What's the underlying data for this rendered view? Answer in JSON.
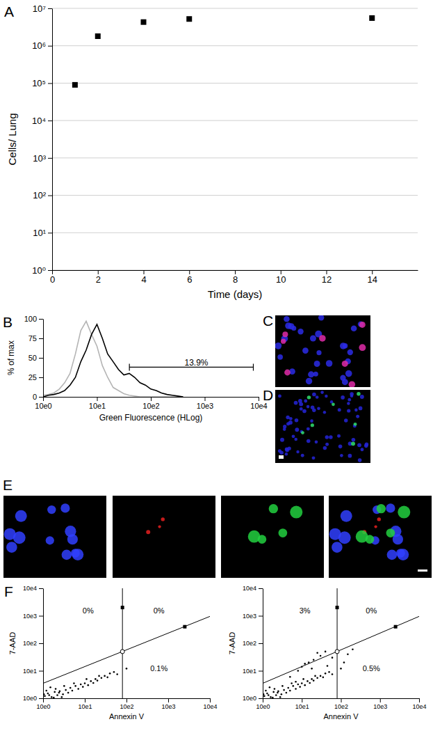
{
  "chart_data": [
    {
      "type": "scatter",
      "title": "A",
      "x": [
        1,
        2,
        4,
        6,
        14
      ],
      "values": [
        90000,
        1800000,
        4300000,
        5200000,
        5500000
      ],
      "xlim": [
        0,
        16
      ],
      "ylim": [
        1,
        10000000
      ],
      "xticks": [
        0,
        2,
        4,
        6,
        8,
        10,
        12,
        14
      ],
      "yticks": [
        {
          "value": 1,
          "label": "10⁰"
        },
        {
          "value": 10,
          "label": "10¹"
        },
        {
          "value": 100,
          "label": "10²"
        },
        {
          "value": 1000,
          "label": "10³"
        },
        {
          "value": 10000,
          "label": "10⁴"
        },
        {
          "value": 100000,
          "label": "10⁵"
        },
        {
          "value": 1000000,
          "label": "10⁶"
        },
        {
          "value": 10000000,
          "label": "10⁷"
        }
      ],
      "log": "y",
      "grid": true,
      "xlabel": "Time (days)",
      "ylabel": "Cells/ Lung",
      "color": "#000000",
      "marker": "square"
    },
    {
      "type": "line",
      "title": "B",
      "x": [
        1,
        1.26,
        1.58,
        2,
        2.51,
        3.16,
        3.98,
        5.01,
        6.31,
        7.94,
        10,
        12.6,
        15.8,
        20,
        25.1,
        31.6,
        39.8,
        50.1,
        63.1,
        79.4,
        100,
        126,
        158,
        200,
        251,
        316,
        398
      ],
      "series": [
        {
          "color": "#b4b4b4",
          "values": [
            2,
            3,
            5,
            10,
            18,
            30,
            55,
            85,
            97,
            80,
            65,
            40,
            25,
            12,
            8,
            4,
            2,
            1,
            0,
            0,
            0,
            0,
            0,
            0,
            0,
            0,
            0
          ]
        },
        {
          "color": "#000000",
          "values": [
            0,
            2,
            3,
            5,
            8,
            15,
            25,
            45,
            60,
            80,
            93,
            75,
            55,
            45,
            35,
            28,
            30,
            25,
            18,
            15,
            10,
            8,
            5,
            3,
            2,
            1,
            0
          ]
        }
      ],
      "xlim": [
        1,
        10000
      ],
      "ylim": [
        0,
        100
      ],
      "xticks": [
        {
          "value": 1,
          "label": "10e0"
        },
        {
          "value": 10,
          "label": "10e1"
        },
        {
          "value": 100,
          "label": "10e2"
        },
        {
          "value": 1000,
          "label": "10e3"
        },
        {
          "value": 10000,
          "label": "10e4"
        }
      ],
      "yticks": [
        0,
        25,
        50,
        75,
        100
      ],
      "log": "x",
      "xlabel": "Green Fluorescence (HLog)",
      "ylabel": "% of max",
      "gate": {
        "x": [
          40,
          8000
        ],
        "y": 38
      },
      "annotations": [
        {
          "text": "13.9%",
          "x": 700,
          "y": 44
        }
      ]
    },
    {
      "type": "image",
      "title": "C",
      "colors": [
        "#2c2ce6",
        "#e02ca8"
      ]
    },
    {
      "type": "image",
      "title": "D",
      "colors": [
        "#2424d8",
        "#30e070"
      ]
    },
    {
      "type": "image",
      "title": "E",
      "colors": [
        "#3040ff"
      ]
    },
    {
      "type": "image",
      "colors": [
        "#e82020"
      ]
    },
    {
      "type": "image",
      "colors": [
        "#22d040"
      ]
    },
    {
      "type": "image",
      "colors": [
        "#3040ff",
        "#e82020",
        "#22d040"
      ]
    },
    {
      "type": "scatter",
      "title": "F",
      "x": [
        1.1,
        1.3,
        1.6,
        1.9,
        2.2,
        2.5,
        1.2,
        3,
        3.5,
        4,
        4.5,
        5,
        6,
        7,
        8,
        9,
        10,
        12,
        14,
        16,
        18,
        20,
        25,
        30,
        35,
        40,
        50,
        60,
        100,
        2,
        2.8,
        1.5,
        5.5,
        11,
        22,
        3.2,
        1.4,
        1.8,
        2.4,
        1.05
      ],
      "values": [
        1.2,
        1.5,
        1.1,
        1.7,
        1.3,
        1.8,
        1.9,
        1.4,
        2,
        1.6,
        2.4,
        1.9,
        2.8,
        2.2,
        3.2,
        2.6,
        3.5,
        3,
        4.2,
        3.6,
        5,
        4.4,
        5.5,
        6.5,
        5.8,
        8,
        9,
        7.5,
        12,
        2.2,
        1.1,
        2.5,
        3.5,
        5,
        6.5,
        2.8,
        1.3,
        1.05,
        1.6,
        1.4
      ],
      "xlim": [
        1,
        10000
      ],
      "ylim": [
        1,
        10000
      ],
      "xticks": [
        {
          "value": 1,
          "label": "10e0"
        },
        {
          "value": 10,
          "label": "10e1"
        },
        {
          "value": 100,
          "label": "10e2"
        },
        {
          "value": 1000,
          "label": "10e3"
        },
        {
          "value": 10000,
          "label": "10e4"
        }
      ],
      "yticks": [
        {
          "value": 1,
          "label": "10e0"
        },
        {
          "value": 10,
          "label": "10e1"
        },
        {
          "value": 100,
          "label": "10e2"
        },
        {
          "value": 1000,
          "label": "10e3"
        },
        {
          "value": 10000,
          "label": "10e4"
        }
      ],
      "log": true,
      "xlabel": "Annexin V",
      "ylabel": "7-AAD",
      "color": "#000000",
      "marker": "dot",
      "gate": {
        "x": 80,
        "line_x": [
          1,
          10000
        ],
        "line_y": [
          3.5,
          950
        ]
      },
      "handles": {
        "x": [
          80,
          2500,
          80
        ],
        "y": [
          2000,
          400,
          50
        ],
        "markers": [
          "square",
          "square",
          "circle"
        ]
      },
      "annotations": [
        {
          "text": "0%",
          "x": 12,
          "y": 1500
        },
        {
          "text": "0%",
          "x": 600,
          "y": 1500
        },
        {
          "text": "0.1%",
          "x": 600,
          "y": 12
        }
      ]
    },
    {
      "type": "scatter",
      "x": [
        1.1,
        1.3,
        1.6,
        1.9,
        2.2,
        2.5,
        1.2,
        3,
        3.5,
        4,
        4.5,
        5,
        6,
        7,
        8,
        9,
        10,
        12,
        14,
        16,
        18,
        20,
        25,
        30,
        35,
        40,
        50,
        60,
        100,
        2,
        2.8,
        1.5,
        5.5,
        11,
        22,
        3.2,
        1.4,
        1.8,
        2.4,
        1.05,
        5,
        8,
        10,
        15,
        20,
        30,
        40,
        25,
        12,
        60,
        150,
        200,
        7,
        18,
        45,
        120
      ],
      "values": [
        1.2,
        1.5,
        1.1,
        1.7,
        1.3,
        1.8,
        1.9,
        1.4,
        2,
        1.6,
        2.4,
        1.9,
        2.8,
        2.2,
        3.2,
        2.6,
        3.5,
        3,
        4.2,
        3.6,
        5,
        4.4,
        5.5,
        6.5,
        5.8,
        8,
        9,
        7.5,
        12,
        2.2,
        1.1,
        2.5,
        3.5,
        5,
        6.5,
        2.8,
        1.3,
        1.05,
        1.6,
        1.4,
        6,
        10,
        14,
        20,
        25,
        35,
        50,
        45,
        18,
        30,
        40,
        60,
        4,
        12,
        15,
        20
      ],
      "xlim": [
        1,
        10000
      ],
      "ylim": [
        1,
        10000
      ],
      "xticks": [
        {
          "value": 1,
          "label": "10e0"
        },
        {
          "value": 10,
          "label": "10e1"
        },
        {
          "value": 100,
          "label": "10e2"
        },
        {
          "value": 1000,
          "label": "10e3"
        },
        {
          "value": 10000,
          "label": "10e4"
        }
      ],
      "yticks": [
        {
          "value": 1,
          "label": "10e0"
        },
        {
          "value": 10,
          "label": "10e1"
        },
        {
          "value": 100,
          "label": "10e2"
        },
        {
          "value": 1000,
          "label": "10e3"
        },
        {
          "value": 10000,
          "label": "10e4"
        }
      ],
      "log": true,
      "xlabel": "Annexin V",
      "ylabel": "7-AAD",
      "color": "#000000",
      "marker": "dot",
      "gate": {
        "x": 80,
        "line_x": [
          1,
          10000
        ],
        "line_y": [
          3.5,
          950
        ]
      },
      "handles": {
        "x": [
          80,
          2500,
          80
        ],
        "y": [
          2000,
          400,
          50
        ],
        "markers": [
          "square",
          "square",
          "circle"
        ]
      },
      "annotations": [
        {
          "text": "3%",
          "x": 12,
          "y": 1500
        },
        {
          "text": "0%",
          "x": 600,
          "y": 1500
        },
        {
          "text": "0.5%",
          "x": 600,
          "y": 12
        }
      ]
    }
  ]
}
